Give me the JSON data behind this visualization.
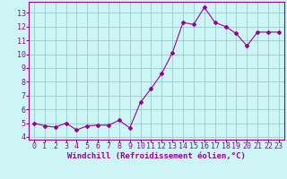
{
  "x": [
    0,
    1,
    2,
    3,
    4,
    5,
    6,
    7,
    8,
    9,
    10,
    11,
    12,
    13,
    14,
    15,
    16,
    17,
    18,
    19,
    20,
    21,
    22,
    23
  ],
  "y": [
    5.0,
    4.8,
    4.7,
    5.0,
    4.5,
    4.8,
    4.85,
    4.85,
    5.2,
    4.65,
    6.5,
    7.5,
    8.6,
    10.1,
    12.3,
    12.15,
    13.4,
    12.3,
    12.0,
    11.5,
    10.6,
    11.6,
    11.6,
    11.6
  ],
  "line_color": "#990099",
  "marker": "D",
  "marker_size": 2.0,
  "bg_color": "#cef5f5",
  "grid_color": "#99cccc",
  "xlabel": "Windchill (Refroidissement éolien,°C)",
  "xlabel_fontsize": 6.5,
  "yticks": [
    4,
    5,
    6,
    7,
    8,
    9,
    10,
    11,
    12,
    13
  ],
  "xlim": [
    -0.5,
    23.5
  ],
  "ylim": [
    3.8,
    13.8
  ],
  "tick_fontsize": 6.0,
  "linewidth": 0.8
}
